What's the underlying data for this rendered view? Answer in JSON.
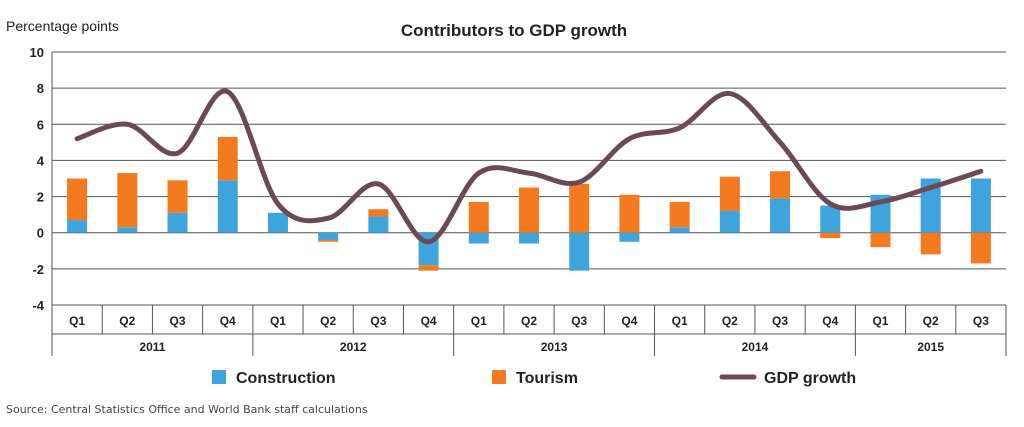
{
  "chart_data": {
    "type": "bar",
    "title": "Contributors to GDP growth",
    "ylabel": "Percentage points",
    "xlabel": "",
    "ylim": [
      -4,
      10
    ],
    "yticks": [
      -4,
      -2,
      0,
      2,
      4,
      6,
      8,
      10
    ],
    "grid": true,
    "stacked": true,
    "legend_placement": "bottom",
    "quarters": [
      "Q1",
      "Q2",
      "Q3",
      "Q4",
      "Q1",
      "Q2",
      "Q3",
      "Q4",
      "Q1",
      "Q2",
      "Q3",
      "Q4",
      "Q1",
      "Q2",
      "Q3",
      "Q4",
      "Q1",
      "Q2",
      "Q3"
    ],
    "years": [
      {
        "label": "2011",
        "count": 4
      },
      {
        "label": "2012",
        "count": 4
      },
      {
        "label": "2013",
        "count": 4
      },
      {
        "label": "2014",
        "count": 4
      },
      {
        "label": "2015",
        "count": 3
      }
    ],
    "series": [
      {
        "name": "Construction",
        "type": "bar",
        "color": "#3fa3dc",
        "values": [
          0.7,
          0.3,
          1.1,
          2.9,
          1.1,
          -0.4,
          0.9,
          -1.8,
          -0.6,
          -0.6,
          -2.1,
          -0.5,
          0.3,
          1.2,
          1.9,
          1.5,
          2.1,
          3.0,
          3.0
        ]
      },
      {
        "name": "Tourism",
        "type": "bar",
        "color": "#f47a20",
        "values": [
          2.3,
          3.0,
          1.8,
          2.4,
          0.0,
          -0.1,
          0.4,
          -0.3,
          1.7,
          2.5,
          2.7,
          2.1,
          1.4,
          1.9,
          1.5,
          -0.3,
          -0.8,
          -1.2,
          -1.7
        ]
      },
      {
        "name": "GDP growth",
        "type": "line",
        "color": "#6b4a55",
        "values": [
          5.2,
          6.0,
          4.4,
          7.8,
          1.6,
          0.8,
          2.7,
          -0.5,
          3.3,
          3.3,
          2.8,
          5.2,
          5.8,
          7.7,
          5.0,
          1.6,
          1.7,
          2.5,
          3.4
        ]
      }
    ]
  },
  "footer": {
    "source": "Source: Central Statistics Office and World Bank staff calculations"
  }
}
